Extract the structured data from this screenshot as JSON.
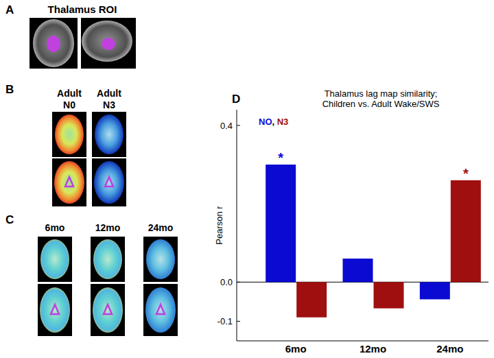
{
  "figure": {
    "panel_labels": [
      "A",
      "B",
      "C",
      "D"
    ],
    "panel_a_title": "Thalamus ROI",
    "panel_b_labels": [
      [
        "Adult",
        "N0"
      ],
      [
        "Adult",
        "N3"
      ]
    ],
    "panel_c_labels": [
      "6mo",
      "12mo",
      "24mo"
    ]
  },
  "chart_data": {
    "type": "bar",
    "title": "Thalamus lag map similarity;\nChildren vs. Adult Wake/SWS",
    "y_label": "Pearson r",
    "categories": [
      "6mo",
      "12mo",
      "24mo"
    ],
    "series": [
      {
        "name": "NO",
        "color": "#0a0ad2",
        "values": [
          0.3,
          0.06,
          -0.044
        ]
      },
      {
        "name": "N3",
        "color": "#a00f0f",
        "values": [
          -0.09,
          -0.067,
          0.26
        ]
      }
    ],
    "legend_separator": ", ",
    "legend": "upper left",
    "annotations": [
      {
        "text": "*",
        "category": 0,
        "series": 0
      },
      {
        "text": "*",
        "category": 2,
        "series": 1
      }
    ],
    "ylim": [
      -0.15,
      0.44
    ],
    "yticks": [
      -0.1,
      {
        "value": 0,
        "label": "0.0"
      },
      0.4
    ]
  }
}
